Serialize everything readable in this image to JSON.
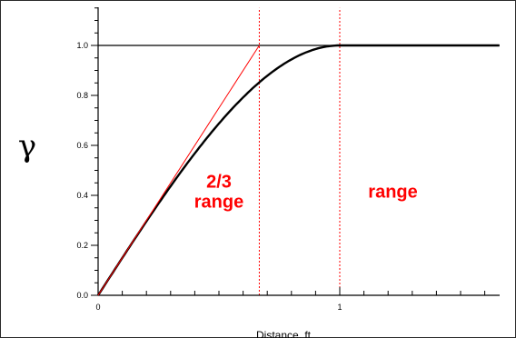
{
  "chart_data": {
    "type": "line",
    "title": "",
    "xlabel": "Distance, ft",
    "ylabel": "γ",
    "xlim": [
      0,
      2
    ],
    "ylim": [
      0,
      1.15
    ],
    "x_ticks": [
      {
        "value": 0,
        "label": "0"
      },
      {
        "value": 1,
        "label": "1"
      }
    ],
    "x_minor_step": 0.1,
    "y_ticks": [
      {
        "value": 0.0,
        "label": "0.0"
      },
      {
        "value": 0.2,
        "label": "0.2"
      },
      {
        "value": 0.4,
        "label": "0.4"
      },
      {
        "value": 0.6,
        "label": "0.6"
      },
      {
        "value": 0.8,
        "label": "0.8"
      },
      {
        "value": 1.0,
        "label": "1.0"
      }
    ],
    "y_minor_step": 0.05,
    "grid": false,
    "series": [
      {
        "kind": "spherical-model",
        "color": "#000000",
        "range": 1.0,
        "sill": 1.0,
        "x": [
          0,
          0.1,
          0.2,
          0.3,
          0.4,
          0.5,
          0.6,
          0.667,
          0.7,
          0.8,
          0.9,
          1.0,
          1.2,
          1.4,
          1.6,
          1.8,
          2.0
        ],
        "y": [
          0,
          0.1495,
          0.296,
          0.4365,
          0.568,
          0.6875,
          0.792,
          0.852,
          0.8785,
          0.944,
          0.9855,
          1.0,
          1.0,
          1.0,
          1.0,
          1.0,
          1.0
        ]
      },
      {
        "kind": "tangent-line",
        "color": "#ff0000",
        "x": [
          0,
          0.667
        ],
        "y": [
          0,
          1.0
        ]
      }
    ],
    "reference_lines": [
      {
        "orientation": "horizontal",
        "value": 1.0,
        "color": "#000000",
        "style": "solid"
      },
      {
        "orientation": "vertical",
        "value": 0.667,
        "color": "#ff0000",
        "style": "dashed"
      },
      {
        "orientation": "vertical",
        "value": 1.0,
        "color": "#ff0000",
        "style": "dashed"
      }
    ],
    "annotations": [
      {
        "lines": [
          "2/3",
          "range"
        ],
        "x": 0.5,
        "y": 0.38,
        "color": "#ff0000"
      },
      {
        "lines": [
          "range"
        ],
        "x": 1.22,
        "y": 0.38,
        "color": "#ff0000"
      }
    ]
  }
}
